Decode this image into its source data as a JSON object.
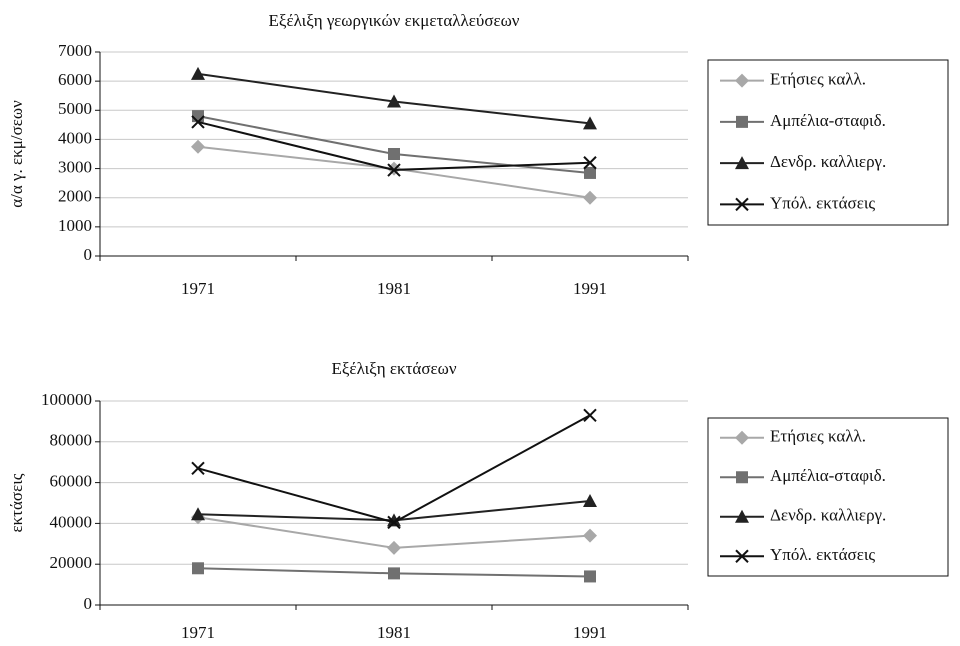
{
  "chart_data": [
    {
      "type": "line",
      "title": "Εξέλιξη γεωργικών εκμεταλλεύσεων",
      "y_label": "α/α γ. εκμ/σεων",
      "categories": [
        "1971",
        "1981",
        "1991"
      ],
      "ylim": [
        0,
        7000
      ],
      "yticks": [
        0,
        1000,
        2000,
        3000,
        4000,
        5000,
        6000,
        7000
      ],
      "grid": true,
      "legend": "right",
      "series": [
        {
          "name": "Ετήσιες καλλ.",
          "color": "#a8a8a8",
          "marker": "diamond",
          "values": [
            3750,
            3000,
            2000
          ]
        },
        {
          "name": "Αμπέλια-σταφιδ.",
          "color": "#707070",
          "marker": "square",
          "values": [
            4800,
            3500,
            2850
          ]
        },
        {
          "name": "Δενδρ. καλλιεργ.",
          "color": "#222222",
          "marker": "triangle",
          "values": [
            6250,
            5300,
            4550
          ]
        },
        {
          "name": "Υπόλ. εκτάσεις",
          "color": "#111111",
          "marker": "x",
          "values": [
            4600,
            2950,
            3200
          ]
        }
      ]
    },
    {
      "type": "line",
      "title": "Εξέλιξη εκτάσεων",
      "y_label": "εκτάσεις",
      "categories": [
        "1971",
        "1981",
        "1991"
      ],
      "ylim": [
        0,
        100000
      ],
      "yticks": [
        0,
        20000,
        40000,
        60000,
        80000,
        100000
      ],
      "grid": true,
      "legend": "right",
      "series": [
        {
          "name": "Ετήσιες καλλ.",
          "color": "#a8a8a8",
          "marker": "diamond",
          "values": [
            43000,
            28000,
            34000
          ]
        },
        {
          "name": "Αμπέλια-σταφιδ.",
          "color": "#707070",
          "marker": "square",
          "values": [
            18000,
            15500,
            14000
          ]
        },
        {
          "name": "Δενδρ. καλλιεργ.",
          "color": "#222222",
          "marker": "triangle",
          "values": [
            44500,
            41500,
            51000
          ]
        },
        {
          "name": "Υπόλ. εκτάσεις",
          "color": "#111111",
          "marker": "x",
          "values": [
            67000,
            40500,
            93000
          ]
        }
      ]
    }
  ]
}
